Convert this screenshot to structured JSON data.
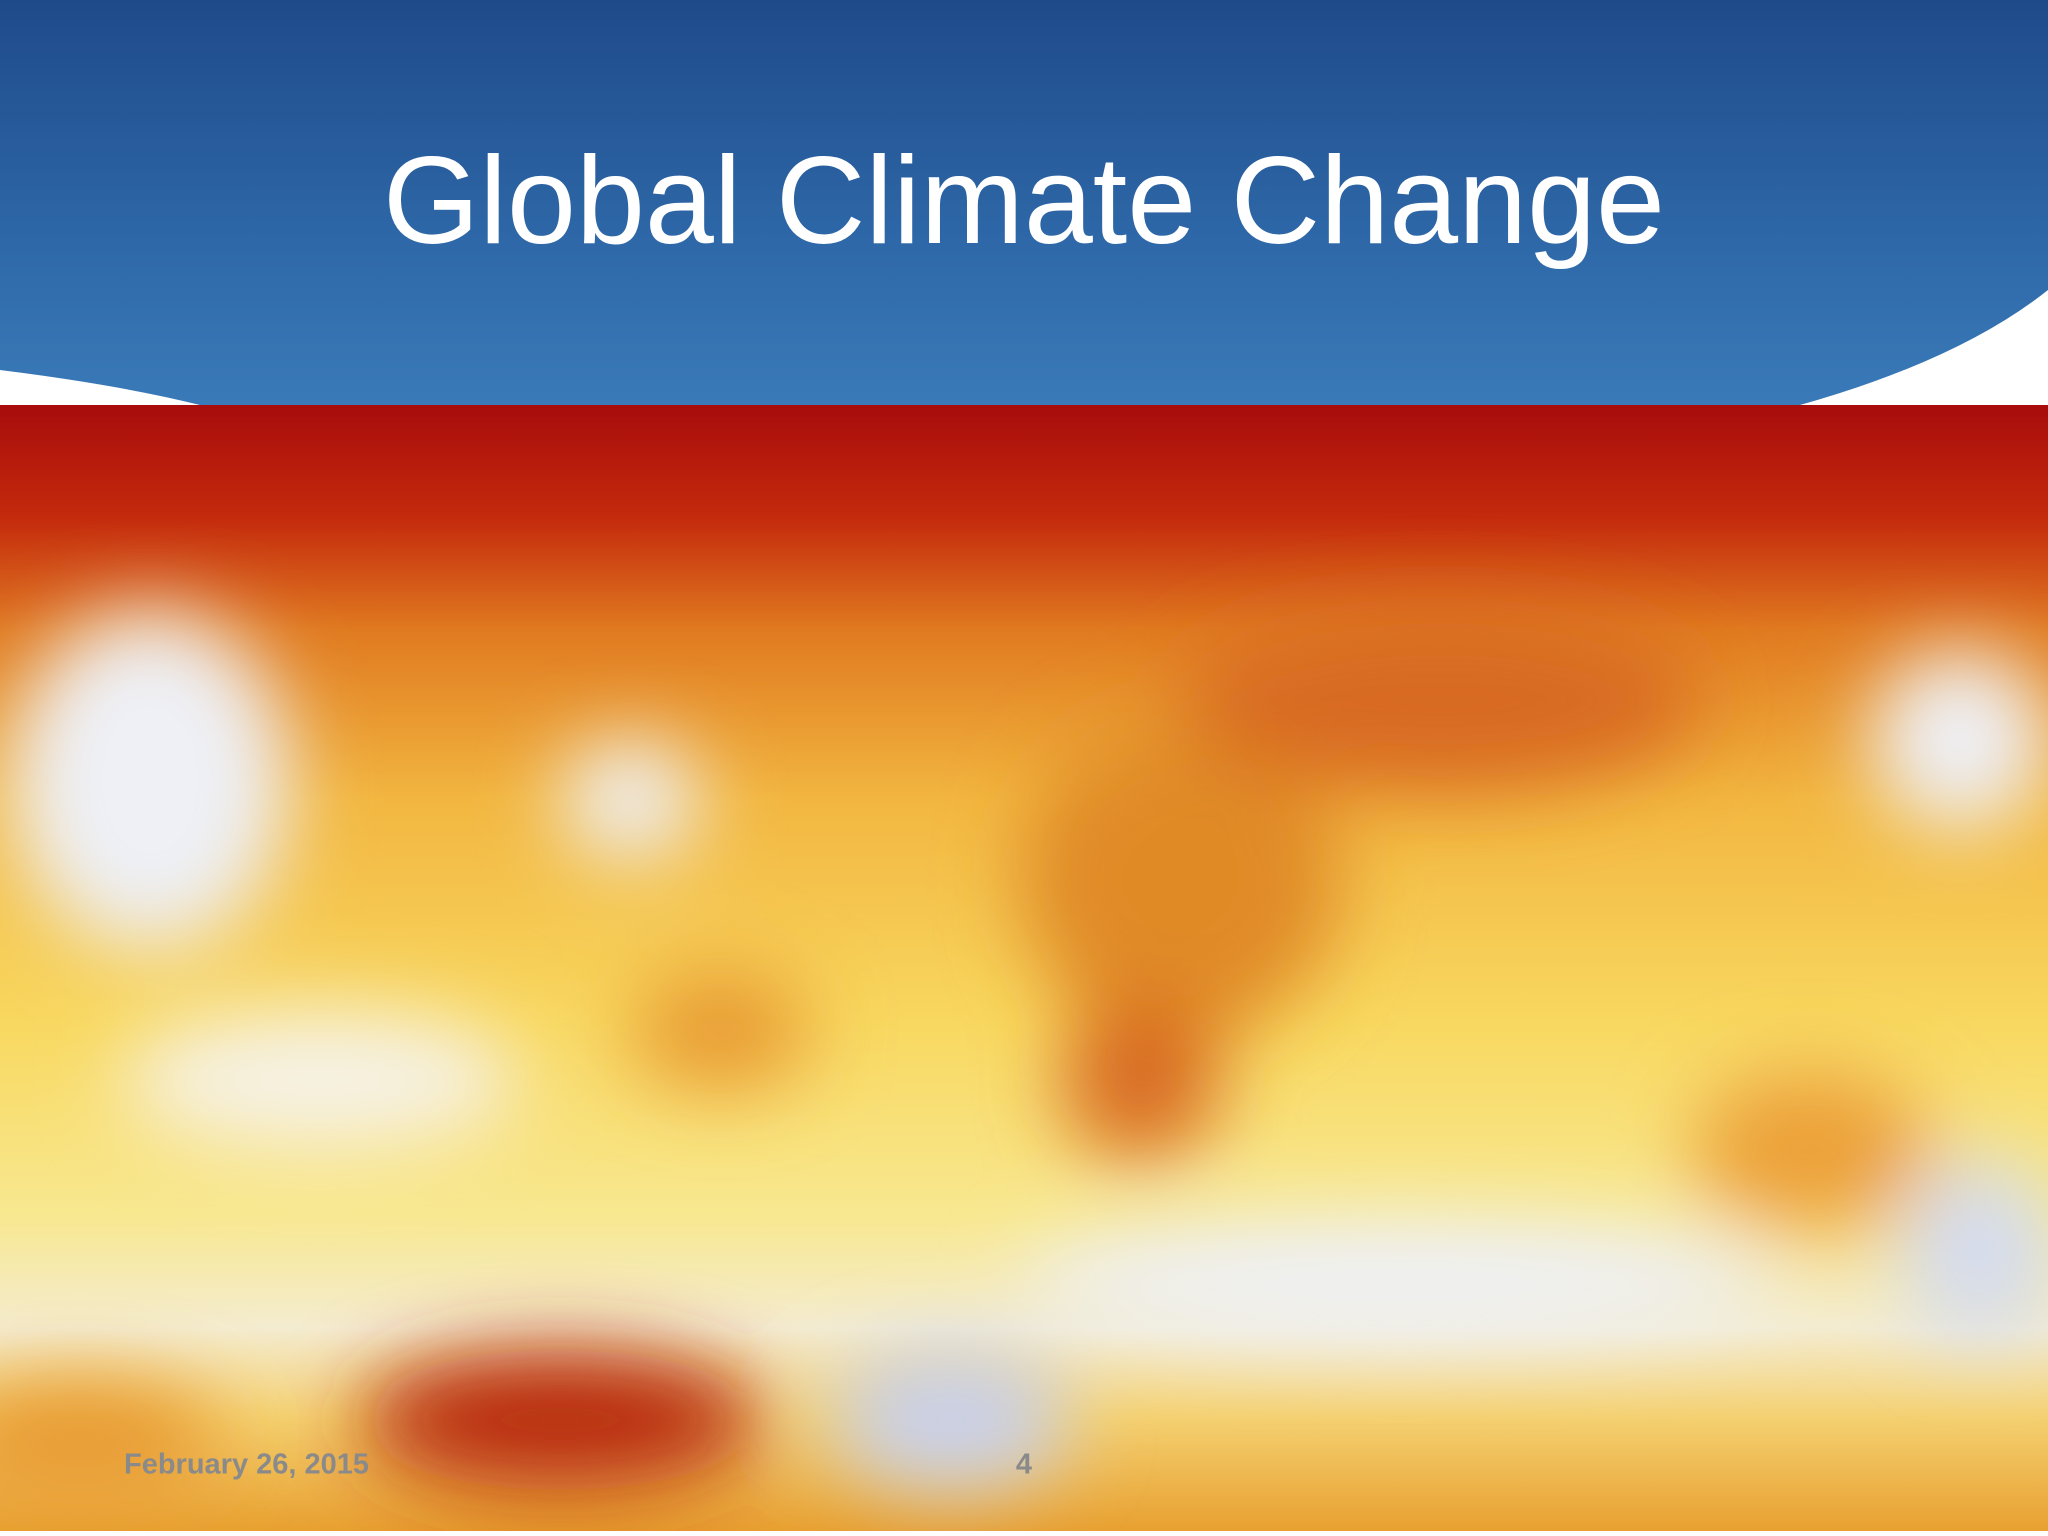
{
  "slide": {
    "title": "Global Climate Change",
    "footer": {
      "date": "February 26, 2015",
      "page_number": "4"
    }
  }
}
